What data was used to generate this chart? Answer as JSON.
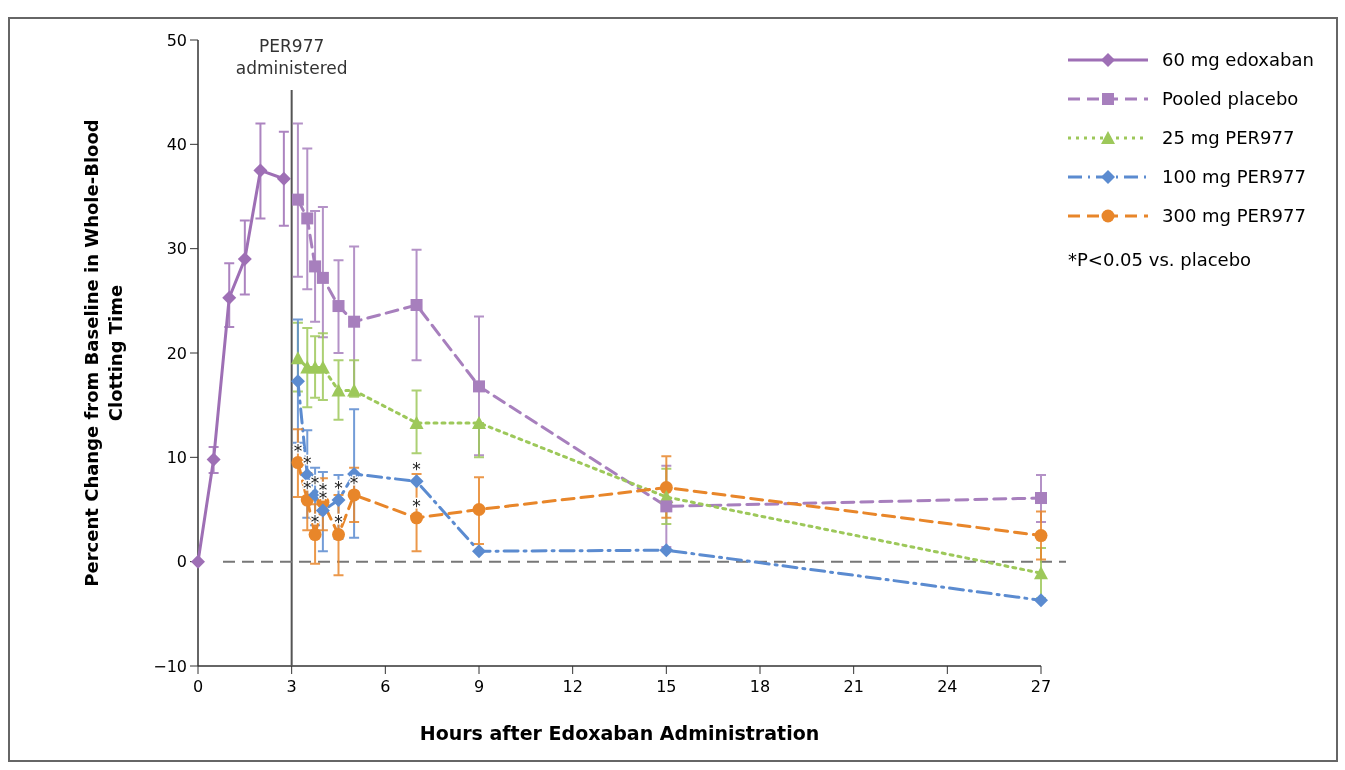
{
  "chart_data": {
    "type": "line",
    "xlabel": "Hours after Edoxaban Administration",
    "ylabel": "Percent Change from Baseline in Whole-Blood Clotting Time",
    "xlim": [
      0,
      27
    ],
    "xticks": [
      0,
      3,
      6,
      9,
      12,
      15,
      18,
      21,
      24,
      27
    ],
    "ylim": [
      -10,
      50
    ],
    "yticks": [
      {
        "value": -10,
        "label": "−10"
      },
      0,
      10,
      20,
      30,
      40,
      50
    ],
    "grid": false,
    "legend": "right",
    "ref_lines": [
      {
        "axis": "x",
        "value": 3,
        "label": "PER977 administered",
        "color": "#555555",
        "line_style": "solid"
      },
      {
        "axis": "y",
        "value": 0,
        "color": "#777777",
        "line_style": "dashed"
      }
    ],
    "series": [
      {
        "name": "60 mg edoxaban",
        "color": "#9e6fb5",
        "marker": "diamond",
        "line_style": "solid",
        "x": [
          0,
          0.5,
          1,
          1.5,
          2,
          2.75
        ],
        "values": [
          0,
          9.8,
          25.3,
          29.0,
          37.5,
          36.7
        ],
        "errors": [
          null,
          [
            8.5,
            11
          ],
          [
            22.5,
            28.6
          ],
          [
            25.6,
            32.7
          ],
          [
            32.9,
            42.0
          ],
          [
            32.2,
            41.2
          ]
        ]
      },
      {
        "name": "Pooled placebo",
        "color": "#a77fbd",
        "marker": "square",
        "line_style": "dashed",
        "x": [
          3.2,
          3.5,
          3.75,
          4,
          4.5,
          5,
          7,
          9,
          15,
          27
        ],
        "values": [
          34.7,
          32.9,
          28.3,
          27.2,
          24.5,
          23.0,
          24.6,
          16.8,
          5.3,
          6.1
        ],
        "errors": [
          [
            27.3,
            42.0
          ],
          [
            26.1,
            39.6
          ],
          [
            23.0,
            33.6
          ],
          [
            21.5,
            34.0
          ],
          [
            20.0,
            28.9
          ],
          [
            16.0,
            30.2
          ],
          [
            19.3,
            29.9
          ],
          [
            10.2,
            23.5
          ],
          [
            1.4,
            9.2
          ],
          [
            3.8,
            8.3
          ]
        ]
      },
      {
        "name": "25 mg PER977",
        "color": "#9dc85a",
        "marker": "triangle",
        "line_style": "dotted",
        "x": [
          3.2,
          3.5,
          3.75,
          4,
          4.5,
          5,
          7,
          9,
          15,
          27
        ],
        "values": [
          19.5,
          18.6,
          18.6,
          18.6,
          16.4,
          16.4,
          13.3,
          13.3,
          6.2,
          -1.1
        ],
        "errors": [
          [
            16.3,
            22.9
          ],
          [
            14.8,
            22.4
          ],
          [
            15.7,
            21.6
          ],
          [
            15.5,
            21.9
          ],
          [
            13.6,
            19.3
          ],
          [
            15.8,
            19.3
          ],
          [
            10.4,
            16.4
          ],
          [
            10.0,
            13.3
          ],
          [
            3.6,
            8.9
          ],
          [
            -3.5,
            1.3
          ]
        ]
      },
      {
        "name": "100 mg PER977",
        "color": "#5b8bd0",
        "marker": "diamond",
        "line_style": "dashdot",
        "x": [
          3.2,
          3.5,
          3.75,
          4,
          4.5,
          5,
          7,
          9,
          15,
          27
        ],
        "values": [
          17.3,
          8.3,
          6.4,
          4.9,
          5.9,
          8.4,
          7.7,
          1.0,
          1.1,
          -3.7
        ],
        "errors": [
          [
            11.4,
            23.2
          ],
          [
            4.2,
            12.6
          ],
          [
            3.5,
            9.0
          ],
          [
            1.0,
            8.6
          ],
          [
            2.2,
            8.3
          ],
          [
            2.3,
            14.6
          ],
          null,
          null,
          null,
          null
        ]
      },
      {
        "name": "300 mg PER977",
        "color": "#e8862a",
        "marker": "circle",
        "line_style": "dashed",
        "x": [
          3.2,
          3.5,
          3.75,
          4,
          4.5,
          5,
          7,
          9,
          15,
          27
        ],
        "values": [
          9.5,
          5.9,
          2.6,
          5.7,
          2.6,
          6.4,
          4.2,
          5.0,
          7.1,
          2.5
        ],
        "errors": [
          [
            6.2,
            12.7
          ],
          [
            3.0,
            8.5
          ],
          [
            -0.2,
            5.5
          ],
          [
            3.0,
            8.0
          ],
          [
            -1.3,
            6.4
          ],
          [
            3.8,
            9.0
          ],
          [
            1.0,
            8.4
          ],
          [
            1.7,
            8.1
          ],
          [
            4.2,
            10.1
          ],
          [
            0.2,
            4.8
          ]
        ]
      }
    ],
    "annotations": [
      "*P<0.05 vs. placebo",
      {
        "text": "*",
        "x": 3.2,
        "y": 9.5
      },
      {
        "text": "*",
        "x": 3.5,
        "y": 8.3
      },
      {
        "text": "*",
        "x": 3.5,
        "y": 5.9
      },
      {
        "text": "*",
        "x": 3.75,
        "y": 6.4
      },
      {
        "text": "*",
        "x": 3.75,
        "y": 2.6
      },
      {
        "text": "*",
        "x": 4,
        "y": 5.7
      },
      {
        "text": "*",
        "x": 4,
        "y": 4.9
      },
      {
        "text": "*",
        "x": 4.5,
        "y": 5.9
      },
      {
        "text": "*",
        "x": 4.5,
        "y": 2.6
      },
      {
        "text": "*",
        "x": 5,
        "y": 6.4
      },
      {
        "text": "*",
        "x": 7,
        "y": 7.7
      },
      {
        "text": "*",
        "x": 7,
        "y": 4.2
      }
    ]
  }
}
